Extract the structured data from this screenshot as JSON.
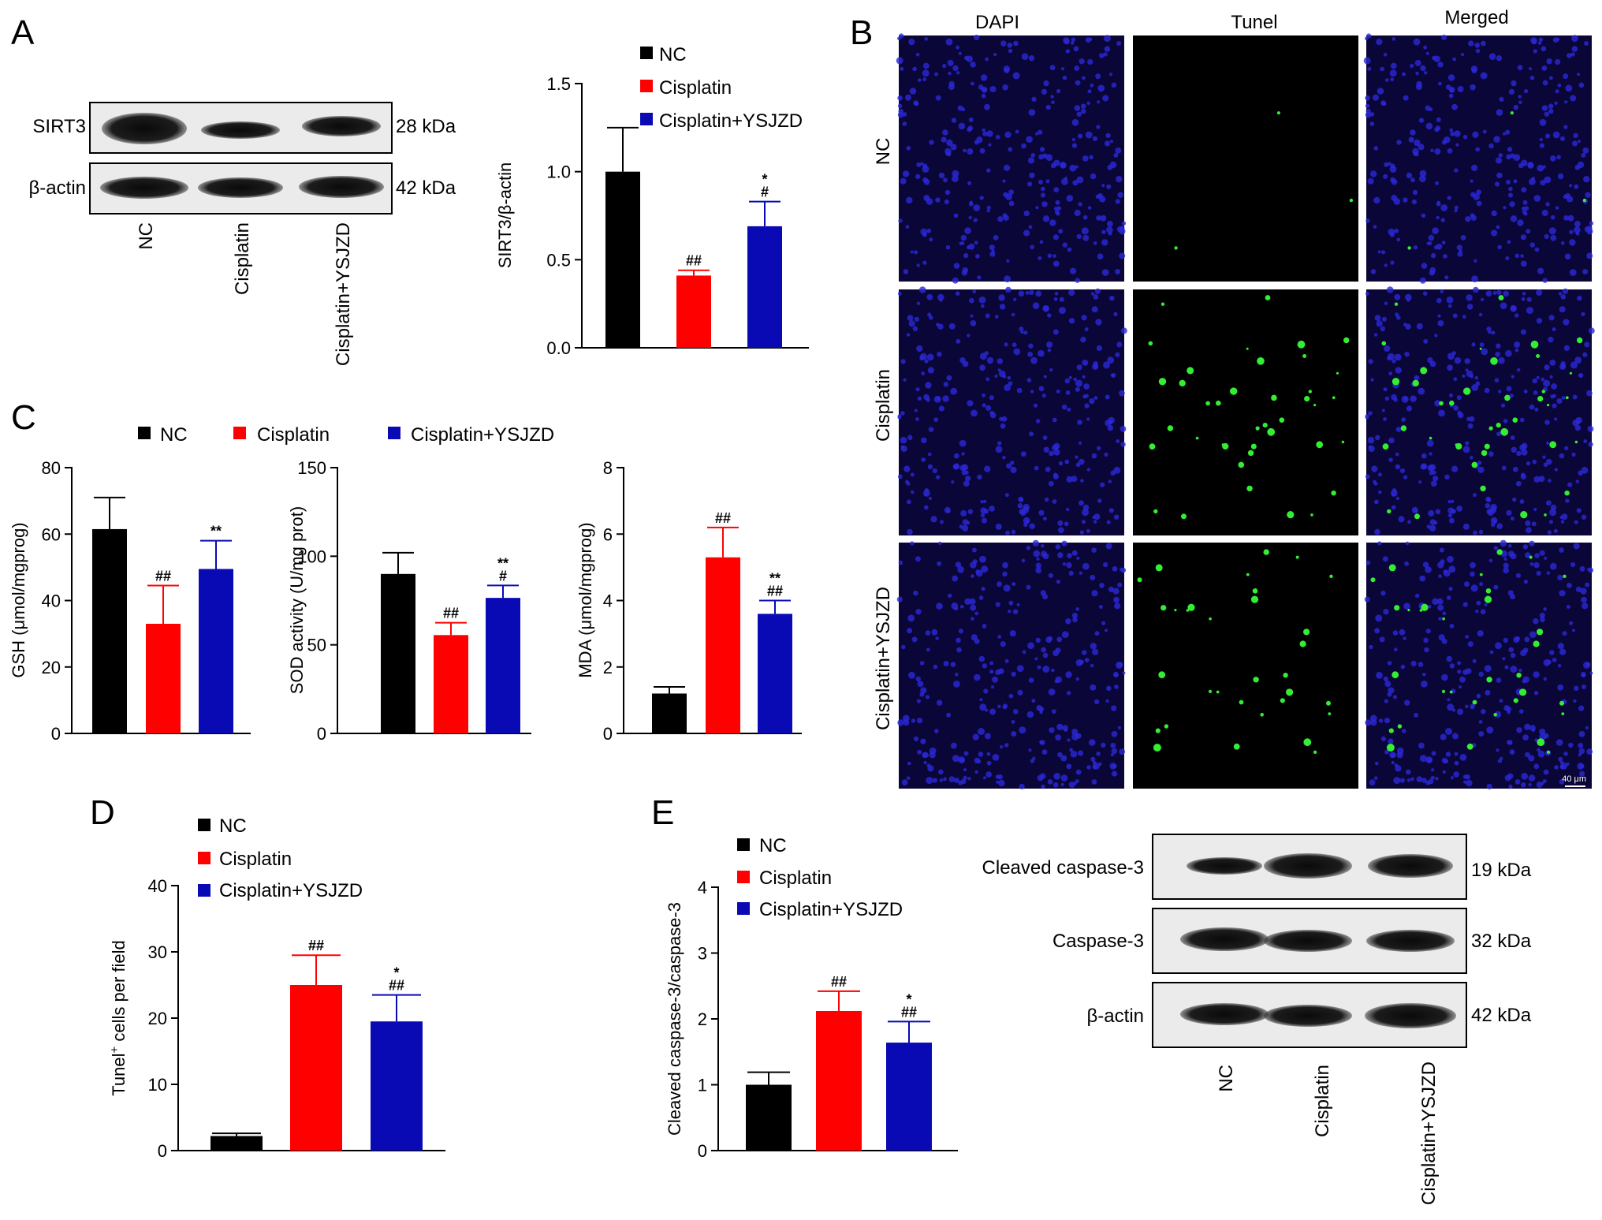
{
  "figure": {
    "panel_letters": {
      "A": "A",
      "B": "B",
      "C": "C",
      "D": "D",
      "E": "E"
    },
    "colors": {
      "nc": "#000000",
      "cisplatin": "#ff0000",
      "ysjzd": "#0a0ab4",
      "nuclei": "#2a28d8",
      "tunel": "#33ee33"
    },
    "legend": {
      "nc": "NC",
      "cisplatin": "Cisplatin",
      "ysjzd": "Cisplatin+YSJZD"
    },
    "blot_A": {
      "rows": [
        "SIRT3",
        "β-actin"
      ],
      "sizes": [
        "28 kDa",
        "42 kDa"
      ],
      "lanes": [
        "NC",
        "Cisplatin",
        "Cisplatin+YSJZD"
      ]
    },
    "micro_B": {
      "columns": [
        "DAPI",
        "Tunel",
        "Merged"
      ],
      "rows": [
        "NC",
        "Cisplatin",
        "Cisplatin+YSJZD"
      ],
      "scale_bar": "40 μm"
    },
    "blot_E": {
      "rows": [
        "Cleaved caspase-3",
        "Caspase-3",
        "β-actin"
      ],
      "sizes": [
        "19 kDa",
        "32 kDa",
        "42 kDa"
      ],
      "lanes": [
        "NC",
        "Cisplatin",
        "Cisplatin+YSJZD"
      ]
    }
  },
  "chart_data": [
    {
      "id": "A",
      "type": "bar",
      "categories": [
        "NC",
        "Cisplatin",
        "Cisplatin+YSJZD"
      ],
      "values": [
        1.0,
        0.41,
        0.69
      ],
      "errors": [
        0.25,
        0.03,
        0.14
      ],
      "annotations": [
        [],
        [
          "##"
        ],
        [
          "*",
          "#"
        ]
      ],
      "ylabel": "SIRT3/β-actin",
      "ylim": [
        0,
        1.5
      ],
      "yticks": [
        0,
        0.5,
        1.0,
        1.5
      ],
      "yticklabels": [
        "0.0",
        "0.5",
        "1.0",
        "1.5"
      ],
      "legend": "top"
    },
    {
      "id": "C1",
      "type": "bar",
      "categories": [
        "NC",
        "Cisplatin",
        "Cisplatin+YSJZD"
      ],
      "values": [
        61.5,
        33,
        49.5
      ],
      "errors": [
        9.5,
        11.5,
        8.5
      ],
      "annotations": [
        [],
        [
          "##"
        ],
        [
          "**"
        ]
      ],
      "ylabel": "GSH (μmol/mgprog)",
      "ylim": [
        0,
        80
      ],
      "yticks": [
        0,
        20,
        40,
        60,
        80
      ],
      "yticklabels": [
        "0",
        "20",
        "40",
        "60",
        "80"
      ]
    },
    {
      "id": "C2",
      "type": "bar",
      "categories": [
        "NC",
        "Cisplatin",
        "Cisplatin+YSJZD"
      ],
      "values": [
        90,
        55.5,
        76.5
      ],
      "errors": [
        12,
        7,
        7
      ],
      "annotations": [
        [],
        [
          "##"
        ],
        [
          "**",
          "#"
        ]
      ],
      "ylabel": "SOD activity (U/mg prot)",
      "ylim": [
        0,
        150
      ],
      "yticks": [
        0,
        50,
        100,
        150
      ],
      "yticklabels": [
        "0",
        "50",
        "100",
        "150"
      ]
    },
    {
      "id": "C3",
      "type": "bar",
      "categories": [
        "NC",
        "Cisplatin",
        "Cisplatin+YSJZD"
      ],
      "values": [
        1.2,
        5.3,
        3.6
      ],
      "errors": [
        0.2,
        0.9,
        0.4
      ],
      "annotations": [
        [],
        [
          "##"
        ],
        [
          "**",
          "##"
        ]
      ],
      "ylabel": "MDA (μmol/mgprog)",
      "ylim": [
        0,
        8
      ],
      "yticks": [
        0,
        2,
        4,
        6,
        8
      ],
      "yticklabels": [
        "0",
        "2",
        "4",
        "6",
        "8"
      ]
    },
    {
      "id": "D",
      "type": "bar",
      "categories": [
        "NC",
        "Cisplatin",
        "Cisplatin+YSJZD"
      ],
      "values": [
        2.2,
        25,
        19.5
      ],
      "errors": [
        0.4,
        4.5,
        4
      ],
      "annotations": [
        [],
        [
          "##"
        ],
        [
          "*",
          "##"
        ]
      ],
      "ylabel_main": "Tunel",
      "ylabel_sup": "+",
      "ylabel_rest": " cells per field",
      "ylim": [
        0,
        40
      ],
      "yticks": [
        0,
        10,
        20,
        30,
        40
      ],
      "yticklabels": [
        "0",
        "10",
        "20",
        "30",
        "40"
      ],
      "legend": "top"
    },
    {
      "id": "E",
      "type": "bar",
      "categories": [
        "NC",
        "Cisplatin",
        "Cisplatin+YSJZD"
      ],
      "values": [
        1.0,
        2.12,
        1.64
      ],
      "errors": [
        0.19,
        0.3,
        0.32
      ],
      "annotations": [
        [],
        [
          "##"
        ],
        [
          "*",
          "##"
        ]
      ],
      "ylabel": "Cleaved caspase-3/caspase-3",
      "ylim": [
        0,
        4
      ],
      "yticks": [
        0,
        1,
        2,
        3,
        4
      ],
      "yticklabels": [
        "0",
        "1",
        "2",
        "3",
        "4"
      ],
      "legend": "top"
    }
  ]
}
